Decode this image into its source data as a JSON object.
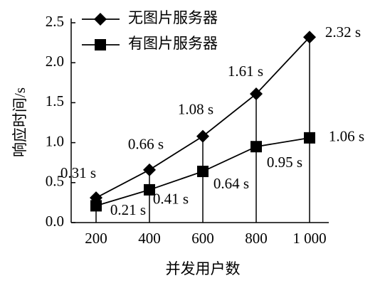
{
  "chart_data": {
    "type": "line",
    "x_label": "并发用户数",
    "y_label": "响应时间/s",
    "categories": [
      "200",
      "400",
      "600",
      "800",
      "1 000"
    ],
    "series": [
      {
        "name": "无图片服务器",
        "color": "#000000",
        "marker": "diamond",
        "values": [
          0.31,
          0.66,
          1.08,
          1.61,
          2.32
        ],
        "value_labels": [
          "0.31 s",
          "0.66 s",
          "1.08 s",
          "1.61 s",
          "2.32 s"
        ]
      },
      {
        "name": "有图片服务器",
        "color": "#000000",
        "marker": "square",
        "values": [
          0.21,
          0.41,
          0.64,
          0.95,
          1.06
        ],
        "value_labels": [
          "0.21 s",
          "0.41 s",
          "0.64 s",
          "0.95 s",
          "1.06 s"
        ]
      }
    ],
    "ylim": [
      0,
      2.5
    ],
    "yticks": [
      {
        "value": 0,
        "label": "0.0"
      },
      0.5,
      {
        "value": 1,
        "label": "1.0"
      },
      1.5,
      {
        "value": 2,
        "label": "2.0"
      },
      2.5
    ],
    "legend": "top-left"
  }
}
